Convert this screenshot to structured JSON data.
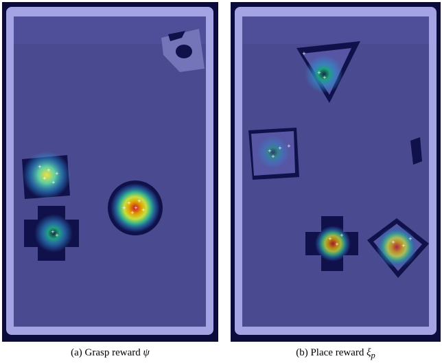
{
  "panels": [
    {
      "label": "(a)",
      "text": "Grasp reward",
      "symbol": "ψ"
    },
    {
      "label": "(b)",
      "text": "Place reward",
      "symbol": "ξ",
      "subscript": "p"
    }
  ]
}
